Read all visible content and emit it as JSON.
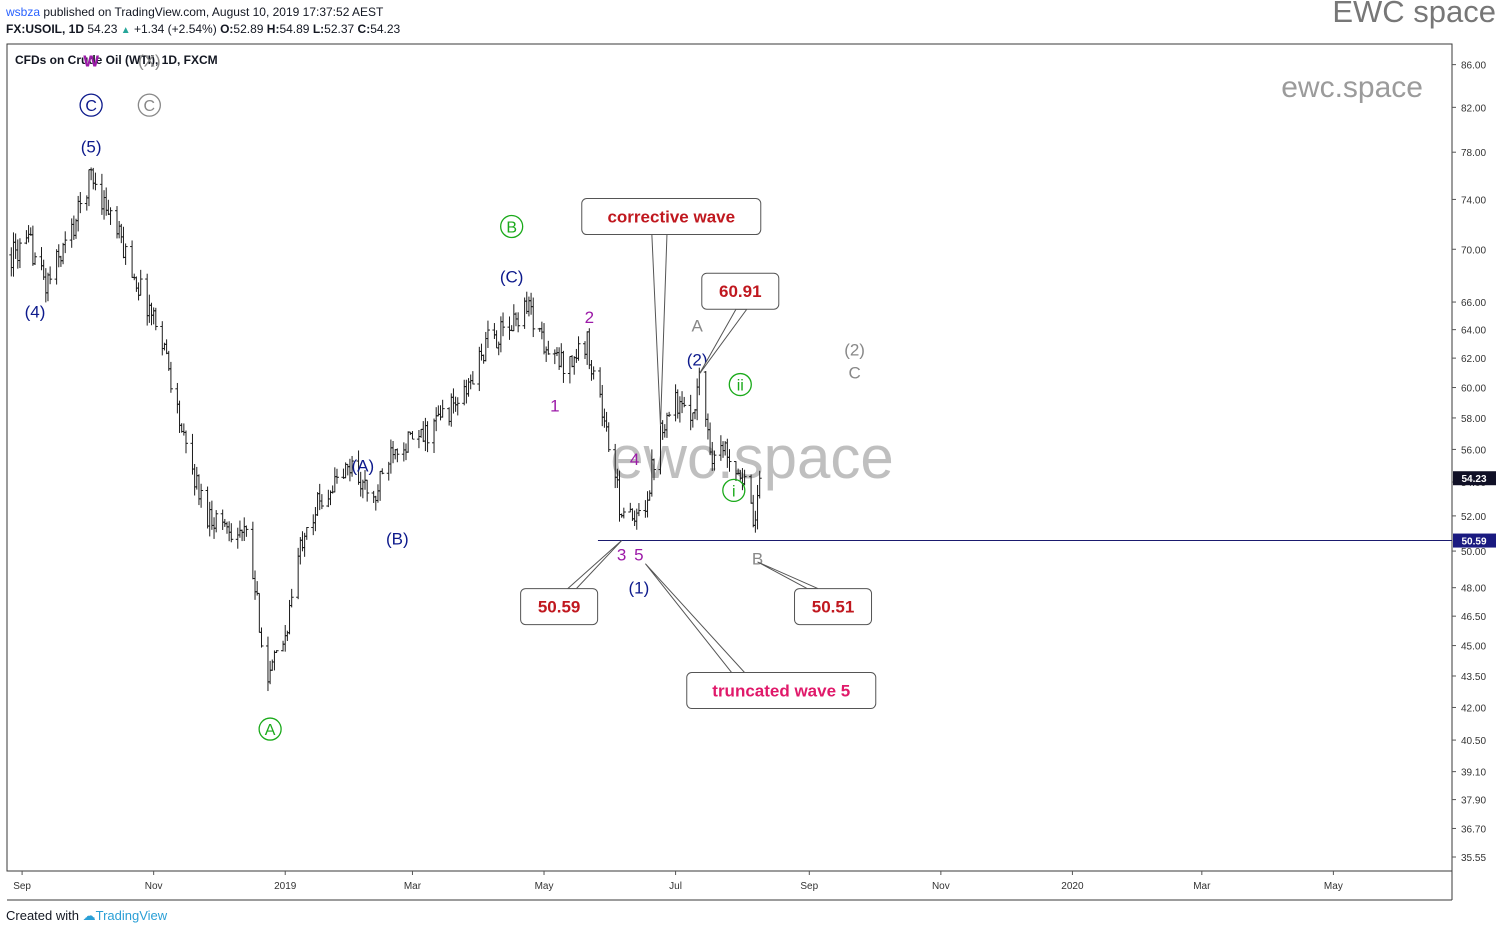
{
  "header": {
    "user": "wsbza",
    "published": "published on TradingView.com, August 10, 2019 17:37:52 AEST",
    "symbol": "FX:USOIL, 1D",
    "last": "54.23",
    "change": "+1.34 (+2.54%)",
    "o_label": "O:",
    "o": "52.89",
    "h_label": "H:",
    "h": "54.89",
    "l_label": "L:",
    "l": "52.37",
    "c_label": "C:",
    "c": "54.23"
  },
  "brand": "EWC space",
  "watermark_small": "ewc.space",
  "watermark_big": "ewc.space",
  "footer": {
    "created": "Created with",
    "tv": "TradingView"
  },
  "colors": {
    "navy": "#0d1a8c",
    "purple": "#9c1aa8",
    "green": "#1aaa1a",
    "gray": "#888888",
    "red": "#c0181f",
    "pink": "#e0196a"
  },
  "chart_data": {
    "type": "ohlc",
    "title": "CFDs on Crude Oil (WTI), 1D, FXCM",
    "y_scale": "log",
    "ylim": [
      35.0,
      88.0
    ],
    "x_range": [
      "2018-08-25",
      "2020-06-25"
    ],
    "y_ticks": [
      35.55,
      36.7,
      37.9,
      39.1,
      40.5,
      42.0,
      43.5,
      45.0,
      46.5,
      48.0,
      50.0,
      52.0,
      54.0,
      56.0,
      58.0,
      60.0,
      62.0,
      64.0,
      66.0,
      70.0,
      74.0,
      78.0,
      82.0,
      86.0
    ],
    "x_ticks": [
      {
        "date": "2018-09-01",
        "label": "Sep"
      },
      {
        "date": "2018-11-01",
        "label": "Nov"
      },
      {
        "date": "2019-01-01",
        "label": "2019"
      },
      {
        "date": "2019-03-01",
        "label": "Mar"
      },
      {
        "date": "2019-05-01",
        "label": "May"
      },
      {
        "date": "2019-07-01",
        "label": "Jul"
      },
      {
        "date": "2019-09-01",
        "label": "Sep"
      },
      {
        "date": "2019-11-01",
        "label": "Nov"
      },
      {
        "date": "2020-01-01",
        "label": "2020"
      },
      {
        "date": "2020-03-01",
        "label": "Mar"
      },
      {
        "date": "2020-05-01",
        "label": "May"
      }
    ],
    "price_path": [
      [
        "2018-08-25",
        69.4
      ],
      [
        "2018-09-05",
        70.3
      ],
      [
        "2018-09-12",
        67.2
      ],
      [
        "2018-09-25",
        71.8
      ],
      [
        "2018-10-03",
        76.2
      ],
      [
        "2018-10-12",
        72.6
      ],
      [
        "2018-10-25",
        67.2
      ],
      [
        "2018-11-05",
        63.5
      ],
      [
        "2018-11-15",
        56.4
      ],
      [
        "2018-11-25",
        52.2
      ],
      [
        "2018-12-05",
        51.5
      ],
      [
        "2018-12-14",
        50.8
      ],
      [
        "2018-12-24",
        43.3
      ],
      [
        "2019-01-01",
        45.5
      ],
      [
        "2019-01-10",
        51.5
      ],
      [
        "2019-01-20",
        53.4
      ],
      [
        "2019-02-01",
        55.0
      ],
      [
        "2019-02-11",
        52.7
      ],
      [
        "2019-02-20",
        56.4
      ],
      [
        "2019-03-05",
        56.6
      ],
      [
        "2019-03-15",
        58.2
      ],
      [
        "2019-03-25",
        59.4
      ],
      [
        "2019-04-05",
        63.2
      ],
      [
        "2019-04-15",
        64.0
      ],
      [
        "2019-04-23",
        66.1
      ],
      [
        "2019-05-03",
        62.1
      ],
      [
        "2019-05-12",
        61.6
      ],
      [
        "2019-05-21",
        63.0
      ],
      [
        "2019-05-28",
        58.5
      ],
      [
        "2019-06-05",
        52.7
      ],
      [
        "2019-06-12",
        51.4
      ],
      [
        "2019-06-18",
        53.3
      ],
      [
        "2019-06-24",
        57.5
      ],
      [
        "2019-07-01",
        59.3
      ],
      [
        "2019-07-07",
        57.5
      ],
      [
        "2019-07-12",
        60.5
      ],
      [
        "2019-07-18",
        55.7
      ],
      [
        "2019-07-25",
        56.0
      ],
      [
        "2019-08-01",
        54.3
      ],
      [
        "2019-08-07",
        51.1
      ],
      [
        "2019-08-09",
        54.23
      ]
    ],
    "last_price": 54.23,
    "support_line": 50.59,
    "wave_labels": [
      {
        "text": "w",
        "date": "2018-10-03",
        "price": 86.4,
        "color": "purple",
        "style": "plain"
      },
      {
        "text": "(X)",
        "date": "2018-10-30",
        "price": 86.4,
        "color": "gray",
        "style": "plain"
      },
      {
        "text": "C",
        "date": "2018-10-03",
        "price": 82.2,
        "color": "navy",
        "style": "circle"
      },
      {
        "text": "C",
        "date": "2018-10-30",
        "price": 82.2,
        "color": "gray",
        "style": "circle"
      },
      {
        "text": "(5)",
        "date": "2018-10-03",
        "price": 78.5,
        "color": "navy",
        "style": "plain"
      },
      {
        "text": "(4)",
        "date": "2018-09-07",
        "price": 65.3,
        "color": "navy",
        "style": "plain"
      },
      {
        "text": "A",
        "date": "2018-12-25",
        "price": 41.0,
        "color": "green",
        "style": "circle"
      },
      {
        "text": "(A)",
        "date": "2019-02-06",
        "price": 55.0,
        "color": "navy",
        "style": "plain"
      },
      {
        "text": "(B)",
        "date": "2019-02-22",
        "price": 50.7,
        "color": "navy",
        "style": "plain"
      },
      {
        "text": "B",
        "date": "2019-04-16",
        "price": 71.8,
        "color": "green",
        "style": "circle"
      },
      {
        "text": "(C)",
        "date": "2019-04-16",
        "price": 67.9,
        "color": "navy",
        "style": "plain"
      },
      {
        "text": "2",
        "date": "2019-05-22",
        "price": 64.9,
        "color": "purple",
        "style": "plain"
      },
      {
        "text": "1",
        "date": "2019-05-06",
        "price": 58.8,
        "color": "purple",
        "style": "plain"
      },
      {
        "text": "4",
        "date": "2019-06-12",
        "price": 55.4,
        "color": "purple",
        "style": "plain"
      },
      {
        "text": "3",
        "date": "2019-06-06",
        "price": 49.8,
        "color": "purple",
        "style": "plain"
      },
      {
        "text": "5",
        "date": "2019-06-14",
        "price": 49.8,
        "color": "purple",
        "style": "plain"
      },
      {
        "text": "(1)",
        "date": "2019-06-14",
        "price": 48.0,
        "color": "navy",
        "style": "plain"
      },
      {
        "text": "A",
        "date": "2019-07-11",
        "price": 64.3,
        "color": "gray",
        "style": "plain"
      },
      {
        "text": "(2)",
        "date": "2019-07-11",
        "price": 61.9,
        "color": "navy",
        "style": "plain"
      },
      {
        "text": "ii",
        "date": "2019-07-31",
        "price": 60.2,
        "color": "green",
        "style": "circle"
      },
      {
        "text": "i",
        "date": "2019-07-28",
        "price": 53.5,
        "color": "green",
        "style": "circle"
      },
      {
        "text": "B",
        "date": "2019-08-08",
        "price": 49.6,
        "color": "gray",
        "style": "plain"
      },
      {
        "text": "(2)",
        "date": "2019-09-22",
        "price": 62.6,
        "color": "gray",
        "style": "plain"
      },
      {
        "text": "C",
        "date": "2019-09-22",
        "price": 61.0,
        "color": "gray",
        "style": "plain"
      }
    ],
    "annotations": [
      {
        "text": "corrective wave",
        "date": "2019-06-29",
        "price": 72.6,
        "color": "red",
        "pointer": {
          "dates": [
            "2019-06-20",
            "2019-06-27"
          ],
          "tip_date": "2019-06-24",
          "tip_price": 57.5
        }
      },
      {
        "text": "60.91",
        "date": "2019-07-31",
        "price": 66.8,
        "color": "red",
        "pointer": {
          "dates": [
            "2019-07-29",
            "2019-08-03"
          ],
          "tip_date": "2019-07-12",
          "tip_price": 60.91
        }
      },
      {
        "text": "50.59",
        "date": "2019-05-08",
        "price": 47.0,
        "color": "red",
        "pointer": {
          "dates": [
            "2019-05-12",
            "2019-05-16"
          ],
          "tip_date": "2019-06-06",
          "tip_price": 50.59
        }
      },
      {
        "text": "50.51",
        "date": "2019-09-12",
        "price": 47.0,
        "color": "red",
        "pointer": {
          "dates": [
            "2019-08-31",
            "2019-09-05"
          ],
          "tip_date": "2019-08-08",
          "tip_price": 49.4
        }
      },
      {
        "text": "truncated wave 5",
        "date": "2019-08-19",
        "price": 42.8,
        "color": "pink",
        "pointer": {
          "dates": [
            "2019-07-27",
            "2019-08-02"
          ],
          "tip_date": "2019-06-17",
          "tip_price": 49.3
        }
      }
    ]
  }
}
